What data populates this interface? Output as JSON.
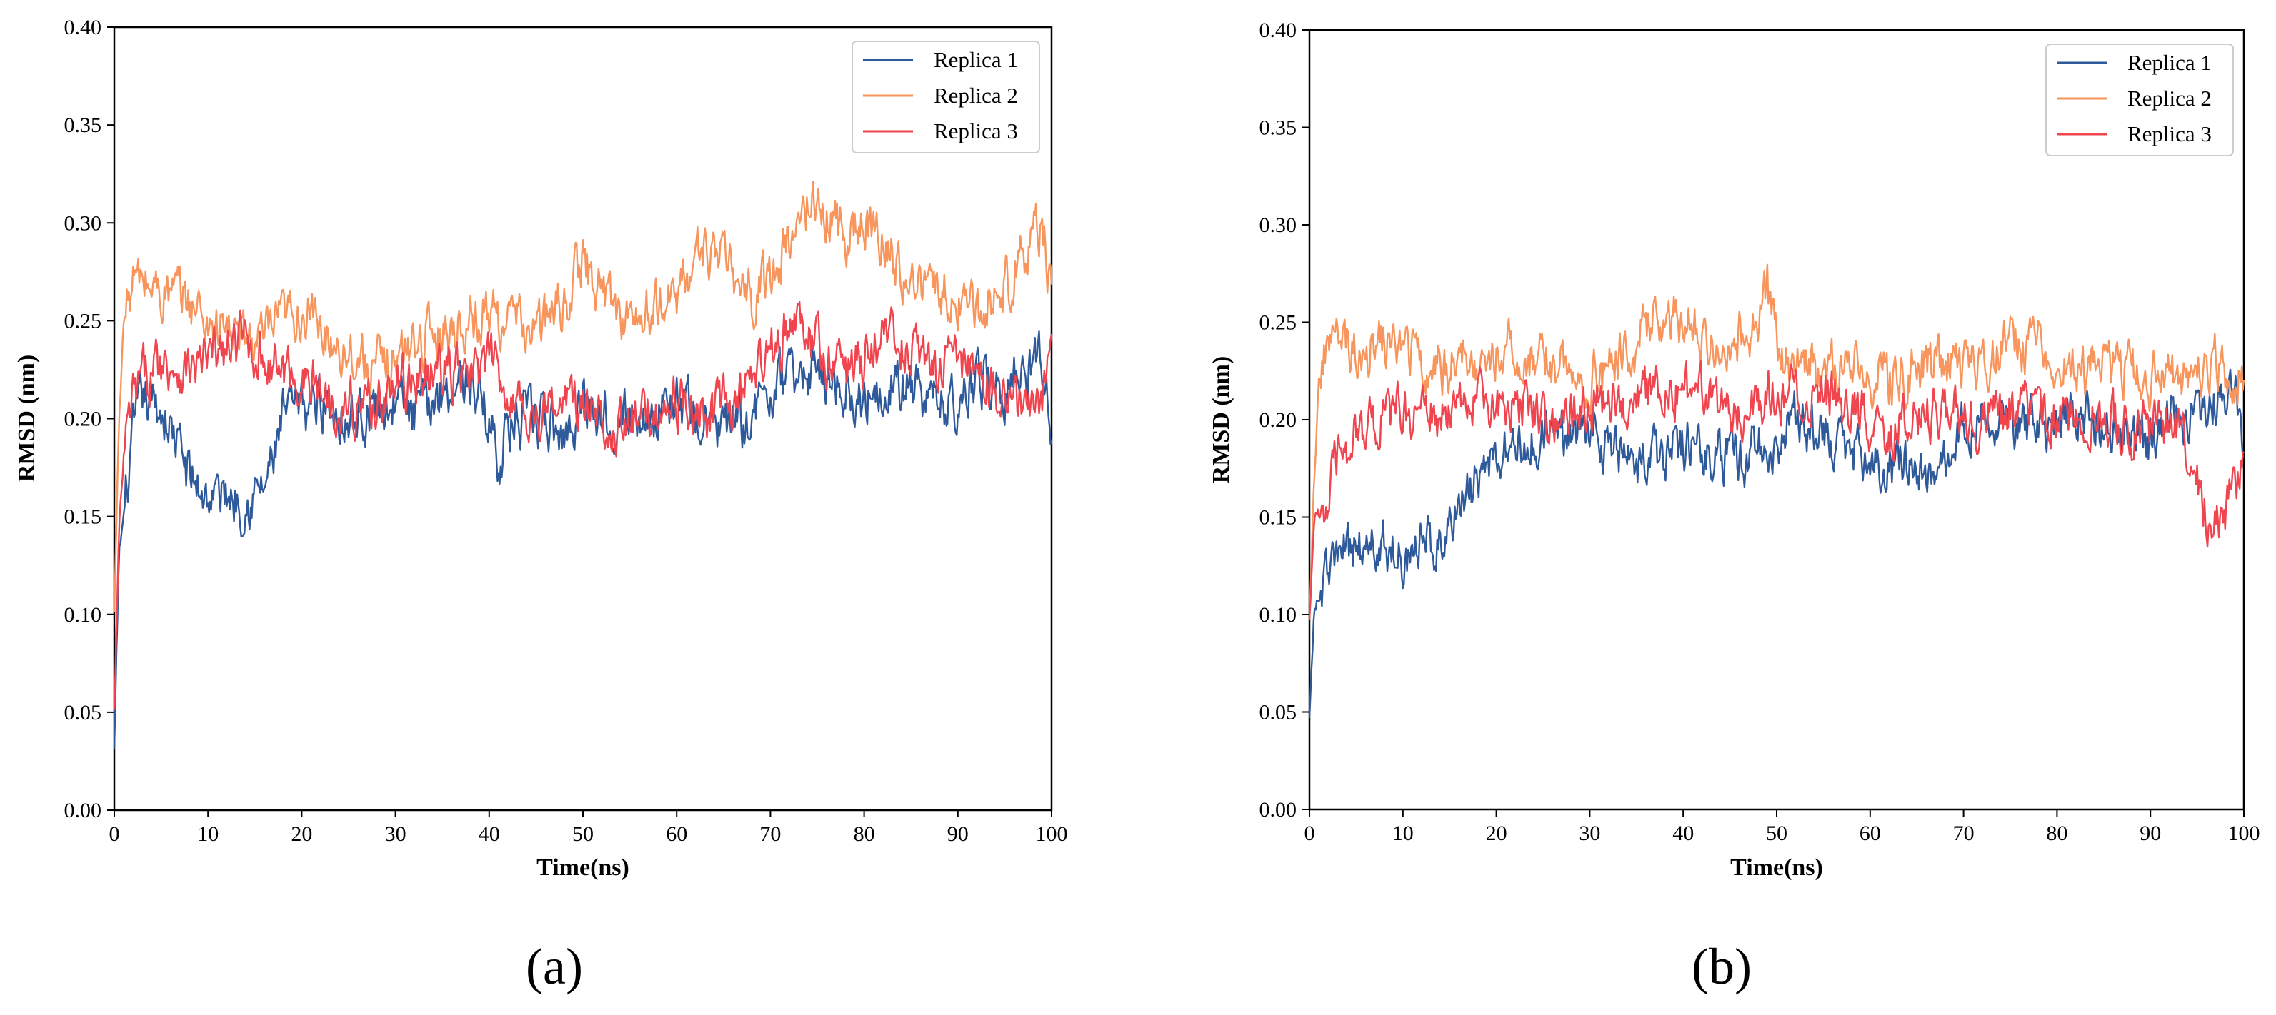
{
  "colors": {
    "replica1": "#2e5a9c",
    "replica2": "#f7955c",
    "replica3": "#f0444f",
    "axis": "#000000",
    "background": "#ffffff"
  },
  "chart_data": [
    {
      "type": "line",
      "panel_label": "(a)",
      "xlabel": "Time(ns)",
      "ylabel": "RMSD (nm)",
      "xlim": [
        0,
        100
      ],
      "ylim": [
        0.0,
        0.4
      ],
      "xticks": [
        0,
        10,
        20,
        30,
        40,
        50,
        60,
        70,
        80,
        90,
        100
      ],
      "xtick_labels": [
        "0",
        "10",
        "20",
        "30",
        "40",
        "50",
        "60",
        "70",
        "80",
        "90",
        "100"
      ],
      "yticks": [
        0.0,
        0.05,
        0.1,
        0.15,
        0.2,
        0.25,
        0.3,
        0.35,
        0.4
      ],
      "ytick_labels": [
        "0.00",
        "0.05",
        "0.10",
        "0.15",
        "0.20",
        "0.25",
        "0.30",
        "0.35",
        "0.40"
      ],
      "legend_position": "top-right",
      "grid": false,
      "series": [
        {
          "name": "Replica 1",
          "color_key": "replica1",
          "x": [
            0,
            0.5,
            1,
            2,
            3,
            5,
            6,
            7,
            8,
            9,
            10,
            12,
            14,
            16,
            17,
            18,
            20,
            22,
            25,
            28,
            30,
            32,
            35,
            38,
            40,
            41,
            42,
            45,
            48,
            50,
            52,
            55,
            58,
            60,
            62,
            65,
            68,
            70,
            72,
            75,
            78,
            80,
            82,
            85,
            88,
            90,
            92,
            95,
            97,
            99,
            100
          ],
          "y": [
            0.03,
            0.13,
            0.15,
            0.19,
            0.21,
            0.205,
            0.195,
            0.185,
            0.17,
            0.165,
            0.16,
            0.162,
            0.158,
            0.165,
            0.18,
            0.2,
            0.205,
            0.21,
            0.2,
            0.205,
            0.21,
            0.2,
            0.215,
            0.22,
            0.2,
            0.18,
            0.195,
            0.2,
            0.19,
            0.21,
            0.205,
            0.2,
            0.205,
            0.21,
            0.2,
            0.195,
            0.2,
            0.215,
            0.22,
            0.225,
            0.215,
            0.21,
            0.22,
            0.215,
            0.205,
            0.21,
            0.22,
            0.215,
            0.225,
            0.23,
            0.2
          ]
        },
        {
          "name": "Replica 2",
          "color_key": "replica2",
          "x": [
            0,
            0.5,
            1,
            2,
            3,
            5,
            8,
            10,
            12,
            14,
            16,
            18,
            20,
            22,
            25,
            28,
            30,
            32,
            35,
            38,
            40,
            42,
            45,
            48,
            50,
            52,
            55,
            58,
            60,
            62,
            63,
            65,
            68,
            70,
            72,
            74,
            76,
            78,
            80,
            82,
            85,
            88,
            90,
            92,
            95,
            97,
            99,
            100
          ],
          "y": [
            0.1,
            0.2,
            0.25,
            0.27,
            0.27,
            0.265,
            0.26,
            0.25,
            0.245,
            0.24,
            0.24,
            0.25,
            0.255,
            0.245,
            0.235,
            0.225,
            0.23,
            0.24,
            0.245,
            0.25,
            0.255,
            0.25,
            0.245,
            0.26,
            0.28,
            0.265,
            0.25,
            0.255,
            0.265,
            0.28,
            0.29,
            0.28,
            0.26,
            0.275,
            0.29,
            0.31,
            0.305,
            0.295,
            0.3,
            0.29,
            0.27,
            0.265,
            0.26,
            0.255,
            0.27,
            0.28,
            0.3,
            0.26
          ]
        },
        {
          "name": "Replica 3",
          "color_key": "replica3",
          "x": [
            0,
            0.5,
            1,
            2,
            3,
            5,
            8,
            10,
            12,
            14,
            16,
            18,
            20,
            22,
            25,
            28,
            30,
            32,
            35,
            38,
            40,
            42,
            45,
            48,
            50,
            52,
            55,
            58,
            60,
            62,
            65,
            68,
            70,
            72,
            75,
            78,
            80,
            82,
            85,
            88,
            90,
            92,
            95,
            97,
            99,
            100
          ],
          "y": [
            0.05,
            0.14,
            0.18,
            0.21,
            0.22,
            0.23,
            0.225,
            0.23,
            0.235,
            0.24,
            0.23,
            0.225,
            0.22,
            0.215,
            0.205,
            0.21,
            0.215,
            0.22,
            0.225,
            0.22,
            0.23,
            0.215,
            0.2,
            0.21,
            0.205,
            0.2,
            0.195,
            0.205,
            0.21,
            0.2,
            0.205,
            0.215,
            0.235,
            0.25,
            0.235,
            0.225,
            0.23,
            0.245,
            0.235,
            0.225,
            0.23,
            0.22,
            0.215,
            0.205,
            0.21,
            0.235
          ]
        }
      ]
    },
    {
      "type": "line",
      "panel_label": "(b)",
      "xlabel": "Time(ns)",
      "ylabel": "RMSD (nm)",
      "xlim": [
        0,
        100
      ],
      "ylim": [
        0.0,
        0.4
      ],
      "xticks": [
        0,
        10,
        20,
        30,
        40,
        50,
        60,
        70,
        80,
        90,
        100
      ],
      "xtick_labels": [
        "0",
        "10",
        "20",
        "30",
        "40",
        "50",
        "60",
        "70",
        "80",
        "90",
        "100"
      ],
      "yticks": [
        0.0,
        0.05,
        0.1,
        0.15,
        0.2,
        0.25,
        0.3,
        0.35,
        0.4
      ],
      "ytick_labels": [
        "0.00",
        "0.05",
        "0.10",
        "0.15",
        "0.20",
        "0.25",
        "0.30",
        "0.35",
        "0.40"
      ],
      "legend_position": "top-right",
      "grid": false,
      "series": [
        {
          "name": "Replica 1",
          "color_key": "replica1",
          "x": [
            0,
            0.5,
            1,
            2,
            3,
            5,
            8,
            10,
            12,
            14,
            15,
            17,
            18,
            20,
            22,
            25,
            28,
            30,
            32,
            35,
            38,
            40,
            42,
            45,
            48,
            50,
            52,
            55,
            58,
            60,
            62,
            65,
            66,
            67,
            68,
            70,
            72,
            75,
            78,
            80,
            82,
            85,
            88,
            90,
            92,
            95,
            97,
            99,
            100
          ],
          "y": [
            0.05,
            0.1,
            0.11,
            0.12,
            0.13,
            0.135,
            0.135,
            0.13,
            0.135,
            0.14,
            0.15,
            0.16,
            0.17,
            0.18,
            0.185,
            0.19,
            0.195,
            0.2,
            0.185,
            0.175,
            0.18,
            0.19,
            0.185,
            0.18,
            0.185,
            0.19,
            0.2,
            0.195,
            0.185,
            0.18,
            0.175,
            0.18,
            0.17,
            0.16,
            0.18,
            0.2,
            0.205,
            0.2,
            0.195,
            0.2,
            0.205,
            0.195,
            0.185,
            0.19,
            0.2,
            0.205,
            0.21,
            0.215,
            0.19
          ]
        },
        {
          "name": "Replica 2",
          "color_key": "replica2",
          "x": [
            0,
            0.5,
            1,
            2,
            3,
            5,
            8,
            10,
            12,
            14,
            16,
            18,
            20,
            22,
            25,
            28,
            30,
            32,
            35,
            37,
            40,
            42,
            45,
            48,
            49,
            50,
            52,
            55,
            58,
            60,
            62,
            65,
            68,
            70,
            72,
            75,
            78,
            80,
            82,
            85,
            88,
            90,
            92,
            95,
            97,
            99,
            100
          ],
          "y": [
            0.1,
            0.17,
            0.22,
            0.24,
            0.24,
            0.235,
            0.24,
            0.235,
            0.23,
            0.225,
            0.23,
            0.23,
            0.235,
            0.235,
            0.23,
            0.225,
            0.22,
            0.225,
            0.24,
            0.255,
            0.25,
            0.245,
            0.24,
            0.25,
            0.265,
            0.24,
            0.225,
            0.225,
            0.225,
            0.225,
            0.22,
            0.225,
            0.23,
            0.225,
            0.23,
            0.24,
            0.235,
            0.23,
            0.225,
            0.225,
            0.225,
            0.22,
            0.225,
            0.225,
            0.23,
            0.22,
            0.225
          ]
        },
        {
          "name": "Replica 3",
          "color_key": "replica3",
          "x": [
            0,
            0.5,
            1,
            2,
            3,
            5,
            8,
            10,
            12,
            14,
            16,
            18,
            20,
            22,
            25,
            28,
            30,
            32,
            35,
            38,
            40,
            42,
            45,
            48,
            50,
            52,
            55,
            58,
            60,
            62,
            65,
            68,
            70,
            72,
            75,
            78,
            80,
            82,
            85,
            88,
            90,
            92,
            94,
            95,
            96,
            97,
            98,
            99,
            100
          ],
          "y": [
            0.1,
            0.15,
            0.15,
            0.16,
            0.18,
            0.195,
            0.2,
            0.205,
            0.205,
            0.2,
            0.205,
            0.21,
            0.205,
            0.21,
            0.205,
            0.2,
            0.205,
            0.215,
            0.21,
            0.215,
            0.215,
            0.21,
            0.205,
            0.21,
            0.215,
            0.21,
            0.215,
            0.205,
            0.2,
            0.195,
            0.2,
            0.205,
            0.205,
            0.2,
            0.205,
            0.205,
            0.2,
            0.205,
            0.2,
            0.195,
            0.195,
            0.2,
            0.19,
            0.17,
            0.155,
            0.15,
            0.155,
            0.165,
            0.175
          ]
        }
      ]
    }
  ]
}
